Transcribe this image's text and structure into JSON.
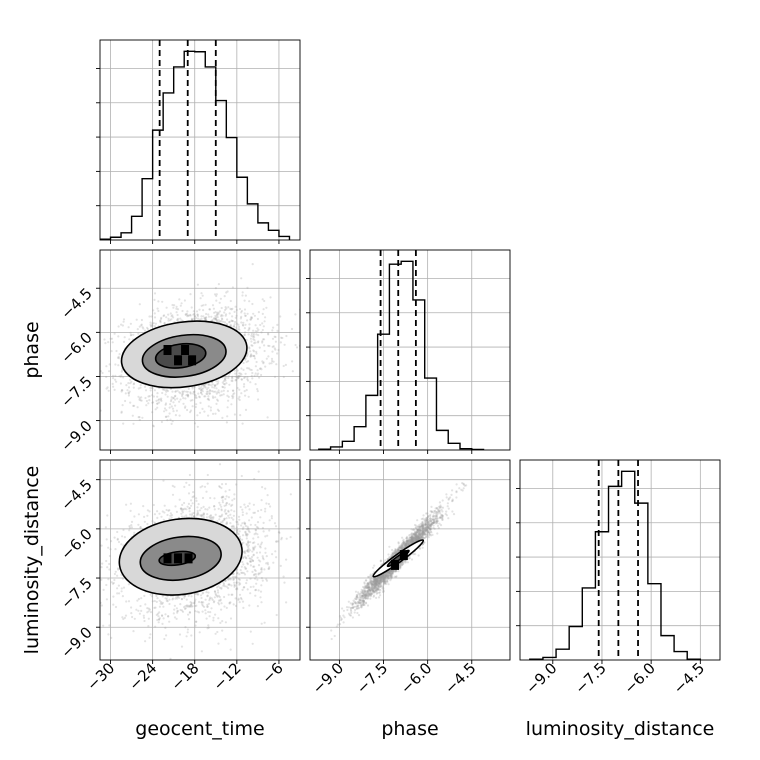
{
  "chart_data": {
    "type": "corner",
    "grid": true,
    "parameters": [
      "geocent_time",
      "phase",
      "luminosity_distance"
    ],
    "axes": {
      "geocent_time": {
        "label": "geocent_time",
        "range": [
          -31.5,
          -3.0
        ],
        "ticks": [
          -30,
          -24,
          -18,
          -12,
          -6
        ],
        "tick_labels": [
          "−30",
          "−24",
          "−18",
          "−12",
          "−6"
        ],
        "quantiles": [
          -23.0,
          -19.0,
          -15.0
        ],
        "hist_bins": [
          -31.5,
          -30.0,
          -28.5,
          -27.0,
          -25.5,
          -24.0,
          -22.5,
          -21.0,
          -19.5,
          -18.0,
          -16.5,
          -15.0,
          -13.5,
          -12.0,
          -10.5,
          -9.0,
          -7.5,
          -6.0,
          -4.5
        ],
        "hist_counts": [
          0.4,
          1.3,
          3.4,
          11.2,
          29.0,
          52.0,
          69.6,
          81.9,
          89.3,
          89.1,
          81.9,
          66.0,
          48.5,
          29.7,
          17.1,
          8.1,
          4.6,
          1.7
        ]
      },
      "phase": {
        "label": "phase",
        "range": [
          -10.0,
          -3.2
        ],
        "ticks": [
          -9.0,
          -7.5,
          -6.0,
          -4.5
        ],
        "tick_labels": [
          "−9.0",
          "−7.5",
          "−6.0",
          "−4.5"
        ],
        "quantiles": [
          -7.6,
          -7.0,
          -6.4
        ],
        "hist_bins": [
          -9.7,
          -9.3,
          -8.9,
          -8.5,
          -8.1,
          -7.7,
          -7.3,
          -6.9,
          -6.5,
          -6.1,
          -5.7,
          -5.3,
          -4.9,
          -4.5,
          -4.1
        ],
        "hist_counts": [
          0.4,
          1.6,
          4.5,
          12.1,
          28.4,
          60.2,
          96.6,
          98.1,
          78.0,
          37.4,
          10.2,
          3.5,
          0.7,
          0.3
        ]
      },
      "luminosity_distance": {
        "label": "luminosity_distance",
        "range": [
          -10.0,
          -3.9
        ],
        "ticks": [
          -9.0,
          -7.5,
          -6.0,
          -4.5
        ],
        "tick_labels": [
          "−9.0",
          "−7.5",
          "−6.0",
          "−4.5"
        ],
        "quantiles": [
          -7.6,
          -7.0,
          -6.4
        ],
        "hist_bins": [
          -9.7,
          -9.3,
          -8.9,
          -8.5,
          -8.1,
          -7.7,
          -7.3,
          -6.9,
          -6.5,
          -6.1,
          -5.7,
          -5.3,
          -4.9,
          -4.5
        ],
        "hist_counts": [
          0.4,
          1.2,
          5.1,
          15.8,
          34.0,
          60.5,
          81.9,
          89.0,
          74.0,
          36.0,
          11.5,
          4.0,
          0.4
        ]
      }
    },
    "panels_2d": [
      {
        "x": "geocent_time",
        "y": "phase",
        "scatter_center": [
          -18.0,
          -6.8
        ],
        "scatter_std": [
          5.0,
          0.85
        ],
        "scatter_corr": 0.18,
        "contours": [
          {
            "center": [
              -20.0,
              -6.8
            ],
            "radius": [
              3.6,
              0.4
            ],
            "tilt": 0.15
          },
          {
            "center": [
              -19.5,
              -6.8
            ],
            "radius": [
              6.0,
              0.7
            ],
            "tilt": 0.2
          },
          {
            "center": [
              -19.5,
              -6.75
            ],
            "radius": [
              9.0,
              1.1
            ],
            "tilt": 0.25
          }
        ],
        "density_peaks": [
          [
            -22.0,
            -6.6
          ],
          [
            -19.5,
            -6.6
          ],
          [
            -20.5,
            -6.95
          ],
          [
            -18.5,
            -6.95
          ]
        ]
      },
      {
        "x": "geocent_time",
        "y": "luminosity_distance",
        "scatter_center": [
          -18.0,
          -6.9
        ],
        "scatter_std": [
          5.0,
          0.85
        ],
        "scatter_corr": 0.18,
        "contours": [
          {
            "center": [
              -20.5,
              -6.9
            ],
            "radius": [
              2.6,
              0.2
            ],
            "tilt": 0.1
          },
          {
            "center": [
              -20.0,
              -6.9
            ],
            "radius": [
              5.8,
              0.65
            ],
            "tilt": 0.2
          },
          {
            "center": [
              -20.0,
              -6.85
            ],
            "radius": [
              8.8,
              1.15
            ],
            "tilt": 0.25
          }
        ],
        "density_peaks": [
          [
            -22.0,
            -6.9
          ],
          [
            -20.5,
            -6.9
          ],
          [
            -19.0,
            -6.9
          ]
        ]
      },
      {
        "x": "phase",
        "y": "luminosity_distance",
        "scatter_center": [
          -7.0,
          -6.9
        ],
        "scatter_std": [
          0.7,
          0.7
        ],
        "scatter_corr": 0.97,
        "contours": [
          {
            "center": [
              -7.0,
              -6.9
            ],
            "radius": [
              0.45,
              0.06
            ],
            "tilt": 0.0
          },
          {
            "center": [
              -7.0,
              -6.9
            ],
            "radius": [
              1.05,
              0.12
            ],
            "tilt": 0.0
          }
        ],
        "density_peaks": [
          [
            -7.2,
            -7.1
          ],
          [
            -6.9,
            -6.8
          ]
        ]
      }
    ],
    "colors": {
      "line": "#000000",
      "grid": "#b0b0b0",
      "scatter": "#9a9a9a",
      "density_dark": "#000000",
      "background": "#ffffff"
    }
  }
}
